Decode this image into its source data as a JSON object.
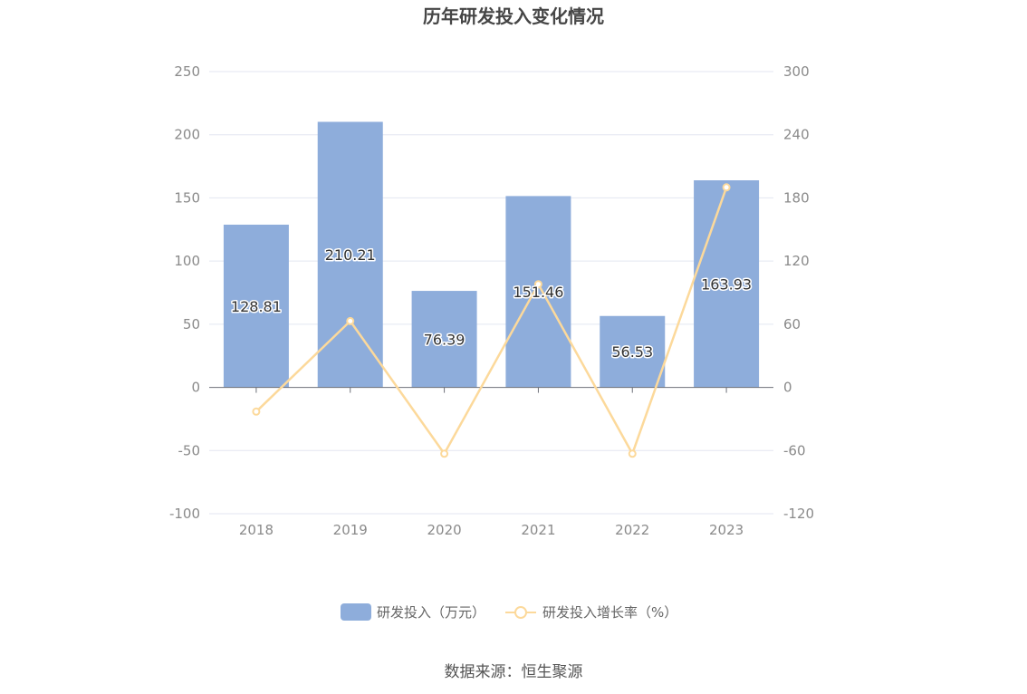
{
  "chart_data": {
    "type": "bar",
    "title": "历年研发投入变化情况",
    "categories": [
      "2018",
      "2019",
      "2020",
      "2021",
      "2022",
      "2023"
    ],
    "series": [
      {
        "name": "研发投入（万元）",
        "type": "bar",
        "axis": "left",
        "values": [
          128.81,
          210.21,
          76.39,
          151.46,
          56.53,
          163.93
        ],
        "value_labels": [
          "128.81",
          "210.21",
          "76.39",
          "151.46",
          "56.53",
          "163.93"
        ]
      },
      {
        "name": "研发投入增长率（%）",
        "type": "line",
        "axis": "right",
        "values": [
          -23,
          63,
          -63,
          98,
          -63,
          190
        ]
      }
    ],
    "y_left": {
      "ylim": [
        -100,
        250
      ],
      "ticks": [
        "-100",
        "-50",
        "0",
        "50",
        "100",
        "150",
        "200",
        "250"
      ]
    },
    "y_right": {
      "ylim": [
        -120,
        300
      ],
      "ticks": [
        "-120",
        "-60",
        "0",
        "60",
        "120",
        "180",
        "240",
        "300"
      ]
    },
    "grid": true,
    "legend": "bottom-center",
    "colors": {
      "bar": "#8eaddb",
      "line": "#fcd99b",
      "grid": "#e3e6f0",
      "axis": "#6e7079"
    }
  },
  "source": "数据来源：恒生聚源"
}
